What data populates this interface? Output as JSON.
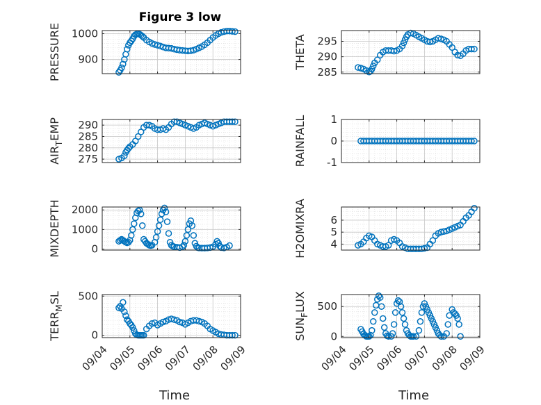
{
  "figure": {
    "title": "Figure 3 low",
    "marker_color": "#0072BD",
    "axes_color": "#262626",
    "grid_color": "#d9d9d9",
    "grid": true,
    "xlabel": "Time",
    "x_ticks": [
      "09/04",
      "09/05",
      "09/06",
      "09/07",
      "09/08",
      "09/09"
    ]
  },
  "chart_data": [
    {
      "type": "scatter",
      "id": "pressure",
      "ylabel": "PRESSURE",
      "ylim": [
        845,
        1012
      ],
      "yticks": [
        900,
        1000
      ],
      "x": [
        4.6,
        4.65,
        4.7,
        4.75,
        4.8,
        4.85,
        4.9,
        4.95,
        5.0,
        5.05,
        5.1,
        5.15,
        5.2,
        5.25,
        5.3,
        5.35,
        5.4,
        5.45,
        5.5,
        5.6,
        5.7,
        5.8,
        5.9,
        6.0,
        6.1,
        6.2,
        6.3,
        6.4,
        6.5,
        6.6,
        6.7,
        6.8,
        6.9,
        7.0,
        7.1,
        7.2,
        7.3,
        7.4,
        7.5,
        7.6,
        7.7,
        7.8,
        7.9,
        8.0,
        8.1,
        8.2,
        8.3,
        8.4,
        8.5,
        8.6,
        8.7,
        8.8
      ],
      "y": [
        850,
        858,
        868,
        882,
        900,
        920,
        940,
        955,
        965,
        972,
        980,
        990,
        996,
        999,
        1000,
        998,
        994,
        990,
        985,
        975,
        968,
        962,
        958,
        955,
        952,
        948,
        945,
        944,
        943,
        940,
        938,
        936,
        935,
        934,
        933,
        934,
        936,
        940,
        945,
        950,
        957,
        965,
        975,
        985,
        993,
        1000,
        1005,
        1008,
        1010,
        1010,
        1009,
        1008
      ]
    },
    {
      "type": "scatter",
      "id": "theta",
      "ylabel": "THETA",
      "ylim": [
        284.5,
        298.5
      ],
      "yticks": [
        285,
        290,
        295
      ],
      "x": [
        4.6,
        4.7,
        4.8,
        4.9,
        5.0,
        5.05,
        5.1,
        5.15,
        5.2,
        5.3,
        5.4,
        5.5,
        5.6,
        5.7,
        5.8,
        5.9,
        6.0,
        6.1,
        6.2,
        6.25,
        6.3,
        6.35,
        6.4,
        6.5,
        6.6,
        6.7,
        6.8,
        6.9,
        7.0,
        7.1,
        7.2,
        7.3,
        7.4,
        7.5,
        7.6,
        7.7,
        7.8,
        7.9,
        8.0,
        8.1,
        8.2,
        8.3,
        8.4,
        8.5,
        8.6,
        8.7,
        8.8
      ],
      "y": [
        286.5,
        286.3,
        286.0,
        285.5,
        285.0,
        285.3,
        286,
        287,
        288,
        289,
        290.5,
        291.5,
        292,
        292,
        292,
        291.8,
        292,
        292.5,
        293.5,
        294.5,
        295.5,
        296.5,
        297.2,
        297.7,
        297.5,
        297,
        296.5,
        296,
        295.5,
        295,
        294.8,
        295,
        295.5,
        296,
        295.8,
        295.5,
        295,
        294,
        293,
        291.5,
        290.5,
        290.3,
        291,
        292,
        292.5,
        292.5,
        292.5
      ]
    },
    {
      "type": "scatter",
      "id": "air_temp",
      "ylabel": "AIR_TEMP",
      "ylim": [
        273.5,
        292.5
      ],
      "yticks": [
        275,
        280,
        285,
        290
      ],
      "x": [
        4.6,
        4.7,
        4.8,
        4.85,
        4.9,
        4.95,
        5.0,
        5.1,
        5.2,
        5.3,
        5.4,
        5.5,
        5.6,
        5.7,
        5.8,
        5.9,
        6.0,
        6.1,
        6.2,
        6.3,
        6.4,
        6.5,
        6.6,
        6.7,
        6.8,
        6.9,
        7.0,
        7.1,
        7.2,
        7.3,
        7.4,
        7.5,
        7.6,
        7.7,
        7.8,
        7.9,
        8.0,
        8.1,
        8.2,
        8.3,
        8.4,
        8.5,
        8.6,
        8.7,
        8.8
      ],
      "y": [
        275,
        275.5,
        276.5,
        278,
        279,
        279.8,
        280.5,
        281.5,
        283,
        285,
        287,
        289,
        290,
        290,
        289.5,
        288.5,
        288,
        288,
        288.5,
        288,
        289,
        290.5,
        291.5,
        291.5,
        291,
        290.5,
        290,
        289.5,
        289,
        288.5,
        289,
        290,
        290.5,
        291,
        290.5,
        290,
        289.5,
        290,
        290.5,
        291,
        291.5,
        291.5,
        291.5,
        291.5,
        291.5
      ]
    },
    {
      "type": "scatter",
      "id": "rainfall",
      "ylabel": "RAINFALL",
      "ylim": [
        -1,
        1
      ],
      "yticks": [
        -1,
        0,
        1
      ],
      "x": [
        4.7,
        4.8,
        4.9,
        5.0,
        5.1,
        5.2,
        5.3,
        5.4,
        5.5,
        5.6,
        5.7,
        5.8,
        5.9,
        6.0,
        6.1,
        6.2,
        6.3,
        6.4,
        6.5,
        6.6,
        6.7,
        6.8,
        6.9,
        7.0,
        7.1,
        7.2,
        7.3,
        7.4,
        7.5,
        7.6,
        7.7,
        7.8,
        7.9,
        8.0,
        8.1,
        8.2,
        8.3,
        8.4,
        8.5,
        8.6,
        8.7,
        8.8
      ],
      "y": [
        0,
        0,
        0,
        0,
        0,
        0,
        0,
        0,
        0,
        0,
        0,
        0,
        0,
        0,
        0,
        0,
        0,
        0,
        0,
        0,
        0,
        0,
        0,
        0,
        0,
        0,
        0,
        0,
        0,
        0,
        0,
        0,
        0,
        0,
        0,
        0,
        0,
        0,
        0,
        0,
        0,
        0
      ]
    },
    {
      "type": "scatter",
      "id": "mixdepth",
      "ylabel": "MIXDEPTH",
      "ylim": [
        -50,
        2150
      ],
      "yticks": [
        0,
        1000,
        2000
      ],
      "x": [
        4.6,
        4.65,
        4.7,
        4.75,
        4.8,
        4.85,
        4.9,
        4.95,
        5.0,
        5.05,
        5.1,
        5.15,
        5.2,
        5.25,
        5.3,
        5.35,
        5.4,
        5.45,
        5.5,
        5.55,
        5.6,
        5.65,
        5.7,
        5.75,
        5.8,
        5.9,
        5.95,
        6.0,
        6.05,
        6.1,
        6.15,
        6.2,
        6.25,
        6.3,
        6.35,
        6.4,
        6.45,
        6.5,
        6.55,
        6.6,
        6.7,
        6.8,
        6.9,
        6.95,
        7.0,
        7.05,
        7.1,
        7.15,
        7.2,
        7.25,
        7.3,
        7.35,
        7.4,
        7.45,
        7.5,
        7.6,
        7.7,
        7.8,
        7.9,
        8.0,
        8.1,
        8.15,
        8.2,
        8.25,
        8.3,
        8.4,
        8.5,
        8.6
      ],
      "y": [
        400,
        450,
        500,
        450,
        400,
        350,
        320,
        350,
        450,
        700,
        1000,
        1300,
        1600,
        1850,
        1950,
        2000,
        1800,
        1200,
        500,
        400,
        300,
        250,
        200,
        180,
        200,
        350,
        600,
        900,
        1200,
        1500,
        1800,
        2000,
        2100,
        1900,
        1400,
        800,
        350,
        200,
        150,
        120,
        100,
        80,
        120,
        200,
        400,
        700,
        1000,
        1300,
        1450,
        1200,
        700,
        300,
        150,
        80,
        60,
        50,
        50,
        60,
        80,
        120,
        250,
        400,
        300,
        150,
        80,
        60,
        100,
        180
      ]
    },
    {
      "type": "scatter",
      "id": "h2omixra",
      "ylabel": "H2OMIXRA",
      "ylim": [
        3.5,
        7.1
      ],
      "yticks": [
        4,
        5,
        6
      ],
      "x": [
        4.6,
        4.7,
        4.8,
        4.9,
        5.0,
        5.1,
        5.2,
        5.3,
        5.4,
        5.5,
        5.6,
        5.7,
        5.8,
        5.9,
        6.0,
        6.1,
        6.2,
        6.3,
        6.4,
        6.5,
        6.6,
        6.7,
        6.8,
        6.9,
        7.0,
        7.1,
        7.2,
        7.3,
        7.4,
        7.5,
        7.6,
        7.7,
        7.8,
        7.9,
        8.0,
        8.1,
        8.2,
        8.3,
        8.4,
        8.5,
        8.6,
        8.7,
        8.8
      ],
      "y": [
        3.9,
        4.0,
        4.2,
        4.5,
        4.7,
        4.6,
        4.3,
        4.0,
        3.9,
        3.8,
        3.8,
        3.9,
        4.3,
        4.4,
        4.3,
        4.1,
        3.8,
        3.7,
        3.6,
        3.6,
        3.6,
        3.6,
        3.6,
        3.6,
        3.65,
        3.7,
        4.0,
        4.3,
        4.7,
        4.9,
        5.0,
        5.05,
        5.1,
        5.2,
        5.3,
        5.4,
        5.5,
        5.6,
        5.9,
        6.2,
        6.4,
        6.7,
        7.0
      ]
    },
    {
      "type": "scatter",
      "id": "terr_msl",
      "ylabel": "TERR_MSL",
      "ylim": [
        -30,
        520
      ],
      "yticks": [
        0,
        500
      ],
      "x": [
        4.6,
        4.65,
        4.7,
        4.75,
        4.8,
        4.85,
        4.9,
        4.95,
        5.0,
        5.05,
        5.1,
        5.15,
        5.2,
        5.25,
        5.3,
        5.35,
        5.4,
        5.45,
        5.5,
        5.6,
        5.7,
        5.8,
        5.9,
        6.0,
        6.1,
        6.2,
        6.3,
        6.4,
        6.5,
        6.6,
        6.7,
        6.8,
        6.9,
        7.0,
        7.1,
        7.2,
        7.3,
        7.4,
        7.5,
        7.6,
        7.7,
        7.8,
        7.9,
        8.0,
        8.1,
        8.2,
        8.3,
        8.4,
        8.5,
        8.6,
        8.7,
        8.8
      ],
      "y": [
        350,
        370,
        340,
        420,
        300,
        250,
        200,
        180,
        150,
        130,
        100,
        60,
        20,
        5,
        0,
        0,
        0,
        0,
        0,
        80,
        120,
        150,
        160,
        130,
        150,
        170,
        180,
        200,
        210,
        200,
        190,
        170,
        160,
        140,
        160,
        180,
        190,
        190,
        180,
        170,
        150,
        120,
        80,
        60,
        40,
        20,
        10,
        5,
        0,
        0,
        0,
        0
      ]
    },
    {
      "type": "scatter",
      "id": "sun_flux",
      "ylabel": "SUN_FLUX",
      "ylim": [
        -20,
        700
      ],
      "yticks": [
        0,
        500
      ],
      "x": [
        4.7,
        4.75,
        4.8,
        4.85,
        4.9,
        4.95,
        5.0,
        5.05,
        5.1,
        5.15,
        5.2,
        5.25,
        5.3,
        5.35,
        5.4,
        5.45,
        5.5,
        5.55,
        5.6,
        5.65,
        5.7,
        5.8,
        5.85,
        5.9,
        5.95,
        6.0,
        6.05,
        6.1,
        6.15,
        6.2,
        6.25,
        6.3,
        6.35,
        6.4,
        6.45,
        6.5,
        6.55,
        6.6,
        6.7,
        6.8,
        6.85,
        6.9,
        6.95,
        7.0,
        7.05,
        7.1,
        7.15,
        7.2,
        7.25,
        7.3,
        7.35,
        7.4,
        7.45,
        7.5,
        7.55,
        7.6,
        7.7,
        7.8,
        7.85,
        7.9,
        8.0,
        8.05,
        8.1,
        8.15,
        8.2,
        8.25,
        8.3
      ],
      "y": [
        120,
        80,
        40,
        20,
        0,
        0,
        0,
        20,
        100,
        250,
        400,
        520,
        620,
        680,
        650,
        500,
        300,
        150,
        50,
        10,
        0,
        0,
        50,
        200,
        400,
        550,
        600,
        580,
        500,
        400,
        300,
        200,
        100,
        50,
        20,
        0,
        0,
        0,
        0,
        100,
        250,
        400,
        500,
        550,
        500,
        450,
        400,
        350,
        300,
        250,
        200,
        150,
        100,
        50,
        20,
        0,
        0,
        50,
        200,
        350,
        450,
        400,
        380,
        350,
        300,
        200,
        0
      ]
    }
  ]
}
